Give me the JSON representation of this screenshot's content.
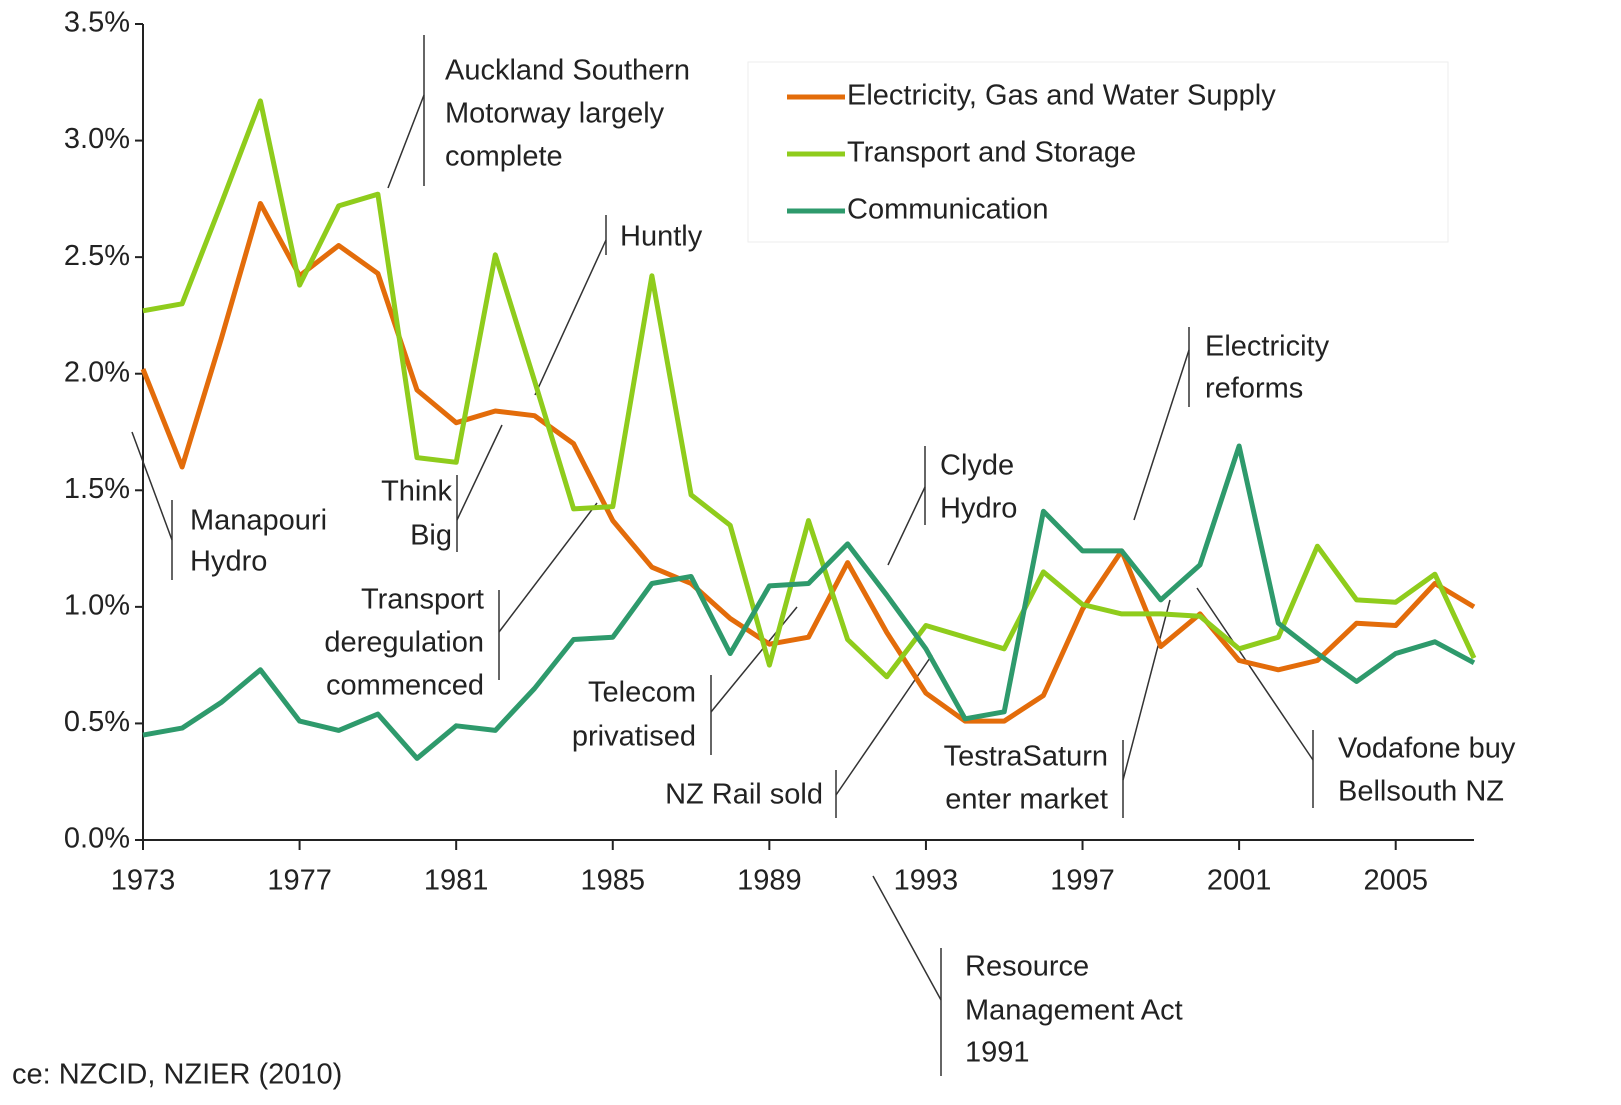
{
  "chart_data": {
    "type": "line",
    "x": [
      1973,
      1974,
      1975,
      1976,
      1977,
      1978,
      1979,
      1980,
      1981,
      1982,
      1983,
      1984,
      1985,
      1986,
      1987,
      1988,
      1989,
      1990,
      1991,
      1992,
      1993,
      1994,
      1995,
      1996,
      1997,
      1998,
      1999,
      2000,
      2001,
      2002,
      2003,
      2004,
      2005,
      2006,
      2007
    ],
    "series": [
      {
        "name": "Electricity, Gas and Water Supply",
        "color": "#e36c0a",
        "values": [
          2.02,
          1.6,
          2.15,
          2.73,
          2.42,
          2.55,
          2.43,
          1.93,
          1.79,
          1.84,
          1.82,
          1.7,
          1.37,
          1.17,
          1.1,
          0.95,
          0.84,
          0.87,
          1.19,
          0.89,
          0.63,
          0.51,
          0.51,
          0.62,
          0.99,
          1.24,
          0.83,
          0.97,
          0.77,
          0.73,
          0.77,
          0.93,
          0.92,
          1.1,
          1.0
        ]
      },
      {
        "name": "Transport and Storage",
        "color": "#8fcc1c",
        "values": [
          2.27,
          2.3,
          2.73,
          3.17,
          2.38,
          2.72,
          2.77,
          1.64,
          1.62,
          2.51,
          1.97,
          1.42,
          1.43,
          2.42,
          1.48,
          1.35,
          0.75,
          1.37,
          0.86,
          0.7,
          0.92,
          0.87,
          0.82,
          1.15,
          1.01,
          0.97,
          0.97,
          0.96,
          0.82,
          0.87,
          1.26,
          1.03,
          1.02,
          1.14,
          0.78
        ]
      },
      {
        "name": "Communication",
        "color": "#2e9a6c",
        "values": [
          0.45,
          0.48,
          0.59,
          0.73,
          0.51,
          0.47,
          0.54,
          0.35,
          0.49,
          0.47,
          0.65,
          0.86,
          0.87,
          1.1,
          1.13,
          0.8,
          1.09,
          1.1,
          1.27,
          1.05,
          0.82,
          0.52,
          0.55,
          1.41,
          1.24,
          1.24,
          1.03,
          1.18,
          1.69,
          0.93,
          0.8,
          0.68,
          0.8,
          0.85,
          0.76
        ]
      }
    ],
    "xlim": [
      1973,
      2007
    ],
    "xticks": [
      1973,
      1977,
      1981,
      1985,
      1989,
      1993,
      1997,
      2001,
      2005
    ],
    "ylim": [
      0,
      3.5
    ],
    "yticks": [
      {
        "value": 0,
        "label": "0.0%"
      },
      {
        "value": 0.5,
        "label": "0.5%"
      },
      {
        "value": 1,
        "label": "1.0%"
      },
      {
        "value": 1.5,
        "label": "1.5%"
      },
      {
        "value": 2,
        "label": "2.0%"
      },
      {
        "value": 2.5,
        "label": "2.5%"
      },
      {
        "value": 3,
        "label": "3.0%"
      },
      {
        "value": 3.5,
        "label": "3.5%"
      }
    ],
    "legend": "top-right",
    "annotations": [
      {
        "lines": [
          "Auckland Southern",
          "Motorway largely",
          "complete"
        ]
      },
      {
        "lines": [
          "Huntly"
        ]
      },
      {
        "lines": [
          "Manapouri",
          "Hydro"
        ]
      },
      {
        "lines": [
          "Think",
          "Big"
        ]
      },
      {
        "lines": [
          "Transport",
          "deregulation",
          "commenced"
        ]
      },
      {
        "lines": [
          "Telecom",
          "privatised"
        ]
      },
      {
        "lines": [
          "Clyde",
          "Hydro"
        ]
      },
      {
        "lines": [
          "Electricity",
          "reforms"
        ]
      },
      {
        "lines": [
          "NZ Rail sold"
        ]
      },
      {
        "lines": [
          "TestraSaturn",
          "enter market"
        ]
      },
      {
        "lines": [
          "Vodafone buy",
          "Bellsouth NZ"
        ]
      },
      {
        "lines": [
          "Resource",
          "Management Act",
          "1991"
        ]
      }
    ],
    "source": "ce:  NZCID, NZIER (2010)"
  }
}
